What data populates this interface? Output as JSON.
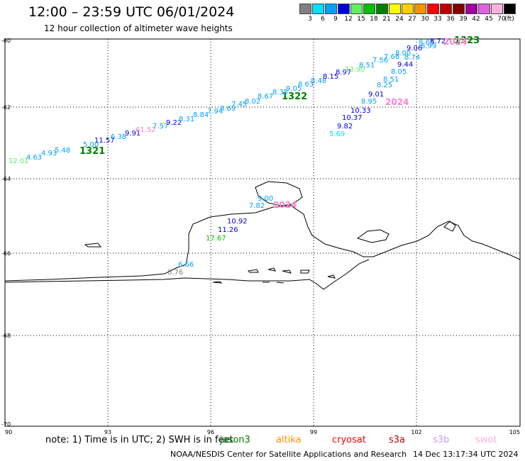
{
  "title": "12:00 – 23:59 UTC 06/01/2024",
  "subtitle": "12 hour collection of altimeter wave heights",
  "legend": {
    "unit": "(ft)",
    "bins": [
      {
        "label": "3",
        "color": "#808080"
      },
      {
        "label": "6",
        "color": "#00e0ff"
      },
      {
        "label": "9",
        "color": "#00a0ff"
      },
      {
        "label": "12",
        "color": "#0000e0"
      },
      {
        "label": "15",
        "color": "#60f060"
      },
      {
        "label": "18",
        "color": "#00c000"
      },
      {
        "label": "21",
        "color": "#008000"
      },
      {
        "label": "24",
        "color": "#ffff00"
      },
      {
        "label": "27",
        "color": "#ffd000"
      },
      {
        "label": "30",
        "color": "#ff9000"
      },
      {
        "label": "33",
        "color": "#ff0000"
      },
      {
        "label": "36",
        "color": "#c00000"
      },
      {
        "label": "39",
        "color": "#800000"
      },
      {
        "label": "42",
        "color": "#a000a0"
      },
      {
        "label": "45",
        "color": "#e060e0"
      },
      {
        "label": "70",
        "color": "#ffb0e0"
      },
      {
        "label": "",
        "color": "#000000"
      }
    ]
  },
  "axes": {
    "lat_labels": [
      "-60",
      "-62",
      "-64",
      "-66",
      "-68",
      "-70"
    ],
    "lon_labels": [
      "90",
      "93",
      "96",
      "99",
      "102",
      "105"
    ]
  },
  "map_data": {
    "lon_range": [
      90,
      105
    ],
    "lat_range": [
      -70,
      -59.2
    ],
    "time_labels": [
      {
        "text": "1321",
        "color": "#008000"
      },
      {
        "text": "1322",
        "color": "#008000"
      },
      {
        "text": "1323",
        "color": "#008000"
      },
      {
        "text": "2024",
        "color": "#ff80d0"
      },
      {
        "text": "2024",
        "color": "#ff80d0"
      },
      {
        "text": "2024",
        "color": "#ff80d0"
      }
    ],
    "wave_heights": [
      {
        "text": "12.01",
        "color": "#60f060"
      },
      {
        "text": "4.63",
        "color": "#00a0ff"
      },
      {
        "text": "4.93",
        "color": "#00a0ff"
      },
      {
        "text": "5.48",
        "color": "#00a0ff"
      },
      {
        "text": "5.00",
        "color": "#00a0ff"
      },
      {
        "text": "11.57",
        "color": "#0000e0"
      },
      {
        "text": "6.38",
        "color": "#00a0ff"
      },
      {
        "text": "9.91",
        "color": "#0000e0"
      },
      {
        "text": "61.52",
        "color": "#ff80d0"
      },
      {
        "text": "7.57",
        "color": "#00a0ff"
      },
      {
        "text": "9.22",
        "color": "#0000e0"
      },
      {
        "text": "8.31",
        "color": "#00a0ff"
      },
      {
        "text": "8.84",
        "color": "#00a0ff"
      },
      {
        "text": "7.94",
        "color": "#00a0ff"
      },
      {
        "text": "8.69",
        "color": "#00a0ff"
      },
      {
        "text": "7.45",
        "color": "#00a0ff"
      },
      {
        "text": "8.02",
        "color": "#00a0ff"
      },
      {
        "text": "8.67",
        "color": "#00a0ff"
      },
      {
        "text": "8.35",
        "color": "#00a0ff"
      },
      {
        "text": "9.05",
        "color": "#00a0ff"
      },
      {
        "text": "8.63",
        "color": "#00a0ff"
      },
      {
        "text": "8.48",
        "color": "#00a0ff"
      },
      {
        "text": "8.15",
        "color": "#0000e0"
      },
      {
        "text": "8.97",
        "color": "#0000e0"
      },
      {
        "text": "13.90",
        "color": "#60f060"
      },
      {
        "text": "8.51",
        "color": "#00a0ff"
      },
      {
        "text": "7.56",
        "color": "#00a0ff"
      },
      {
        "text": "7.66",
        "color": "#00a0ff"
      },
      {
        "text": "8.00",
        "color": "#00a0ff"
      },
      {
        "text": "9.06",
        "color": "#0000e0"
      },
      {
        "text": "8.74",
        "color": "#00a0ff"
      },
      {
        "text": "8.65",
        "color": "#00a0ff"
      },
      {
        "text": "8.99",
        "color": "#00a0ff"
      },
      {
        "text": "8.72",
        "color": "#0000e0"
      },
      {
        "text": "9.44",
        "color": "#0000e0"
      },
      {
        "text": "8.05",
        "color": "#00a0ff"
      },
      {
        "text": "8.51",
        "color": "#00a0ff"
      },
      {
        "text": "8.25",
        "color": "#00a0ff"
      },
      {
        "text": "9.01",
        "color": "#0000e0"
      },
      {
        "text": "8.95",
        "color": "#00a0ff"
      },
      {
        "text": "10.33",
        "color": "#0000e0"
      },
      {
        "text": "10.37",
        "color": "#0000e0"
      },
      {
        "text": "9.82",
        "color": "#0000e0"
      },
      {
        "text": "5.69",
        "color": "#00e0ff"
      },
      {
        "text": "9.00",
        "color": "#00a0ff"
      },
      {
        "text": "7.82",
        "color": "#00a0ff"
      },
      {
        "text": "10.92",
        "color": "#0000e0"
      },
      {
        "text": "11.26",
        "color": "#0000e0"
      },
      {
        "text": "17.67",
        "color": "#00c000"
      },
      {
        "text": "6.66",
        "color": "#00a0ff"
      },
      {
        "text": "0.76",
        "color": "#808080"
      }
    ]
  },
  "footer": {
    "note": "note:  1) Time is in UTC; 2) SWH is in feet",
    "satellites": [
      {
        "name": "jason3",
        "color": "#008000"
      },
      {
        "name": "altika",
        "color": "#ff9000"
      },
      {
        "name": "cryosat",
        "color": "#ff0000"
      },
      {
        "name": "s3a",
        "color": "#c00000"
      },
      {
        "name": "s3b",
        "color": "#c0a0ff"
      },
      {
        "name": "swot",
        "color": "#ffb0e0"
      }
    ],
    "credit": "NOAA/NESDIS Center for Satellite Applications and Research",
    "timestamp": "14 Dec 13:17:34 UTC 2024"
  }
}
